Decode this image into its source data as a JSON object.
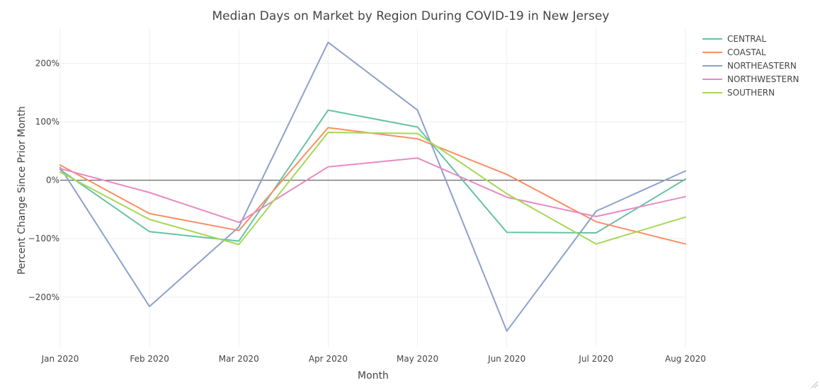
{
  "chart_data": {
    "type": "line",
    "title": "Median Days on Market by Region During COVID-19 in New Jersey",
    "xlabel": "Month",
    "ylabel": "Percent Change Since Prior Month",
    "categories": [
      "Jan 2020",
      "Feb 2020",
      "Mar 2020",
      "Apr 2020",
      "May 2020",
      "Jun 2020",
      "Jul 2020",
      "Aug 2020"
    ],
    "ylim": [
      -285,
      260
    ],
    "yticks": [
      -200,
      -100,
      0,
      100,
      200
    ],
    "ytick_labels": [
      "−200%",
      "−100%",
      "0%",
      "100%",
      "200%"
    ],
    "grid": true,
    "legend_position": "top-right",
    "series": [
      {
        "name": "CENTRAL",
        "color": "#66c2a5",
        "values": [
          18,
          -88,
          -104,
          120,
          91,
          -89,
          -90,
          2
        ]
      },
      {
        "name": "COASTAL",
        "color": "#fc8d62",
        "values": [
          26,
          -57,
          -86,
          90,
          71,
          10,
          -71,
          -109
        ]
      },
      {
        "name": "NORTHEASTERN",
        "color": "#8da0cb",
        "values": [
          22,
          -216,
          -80,
          236,
          120,
          -258,
          -53,
          16
        ]
      },
      {
        "name": "NORTHWESTERN",
        "color": "#e78ac3",
        "values": [
          20,
          -21,
          -72,
          23,
          38,
          -29,
          -62,
          -28
        ]
      },
      {
        "name": "SOUTHERN",
        "color": "#a6d854",
        "values": [
          14,
          -67,
          -110,
          82,
          80,
          -23,
          -109,
          -63
        ]
      }
    ]
  }
}
